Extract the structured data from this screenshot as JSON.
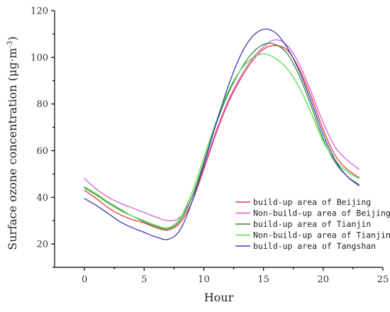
{
  "chart_data": {
    "type": "line",
    "title": "",
    "xlabel": "Hour",
    "ylabel": "Surface ozone concentration (μg·m⁻³)",
    "ylabel_main": "Surface ozone concentration (μg·m",
    "ylabel_sup": "-3",
    "ylabel_close": ")",
    "xlim": [
      -2.5,
      25
    ],
    "ylim": [
      10,
      120
    ],
    "x_ticks": [
      0,
      5,
      10,
      15,
      20,
      25
    ],
    "y_ticks": [
      20,
      40,
      60,
      80,
      100,
      120
    ],
    "x_tick_labels": [
      "0",
      "5",
      "10",
      "15",
      "20",
      "25"
    ],
    "y_tick_labels": [
      "20",
      "40",
      "60",
      "80",
      "100",
      "120"
    ],
    "grid": false,
    "legend_position": "lower-right",
    "x": [
      0,
      1,
      2,
      3,
      4,
      5,
      6,
      7,
      8,
      9,
      10,
      11,
      12,
      13,
      14,
      15,
      16,
      17,
      18,
      19,
      20,
      21,
      22,
      23
    ],
    "series": [
      {
        "name": "build-up area of Beijing",
        "color": "#e8383b",
        "values": [
          43,
          39.5,
          35.5,
          32.5,
          30.5,
          29,
          27,
          26,
          29,
          38,
          52,
          67,
          80,
          90,
          98,
          103.5,
          105,
          103,
          95,
          83,
          69,
          58,
          52,
          48.5
        ]
      },
      {
        "name": "Non-build-up area of Beijing",
        "color": "#d65ed6",
        "values": [
          48,
          43.5,
          40,
          37.5,
          35.5,
          33.5,
          31.5,
          30,
          31.5,
          40,
          53,
          68,
          81,
          91,
          99,
          104.5,
          107.5,
          105,
          97,
          85,
          72,
          61.5,
          56,
          52
        ]
      },
      {
        "name": "build-up area of Tianjin",
        "color": "#2e8b2e",
        "values": [
          44,
          41,
          37.5,
          34.5,
          32,
          29.5,
          27.5,
          26.5,
          30,
          40,
          55,
          71,
          84,
          94,
          101.5,
          105.5,
          105.5,
          101.5,
          92,
          79,
          65,
          55,
          49,
          45.5
        ]
      },
      {
        "name": "Non-build-up area of Tianjin",
        "color": "#4de04d",
        "values": [
          44.5,
          41.5,
          38,
          35,
          32,
          30,
          28,
          27,
          31,
          42,
          57,
          72,
          85,
          94,
          99.5,
          101.5,
          99.5,
          95,
          87,
          76,
          64,
          56,
          51,
          48
        ]
      },
      {
        "name": "build-up area of Tangshan",
        "color": "#3a3ab5",
        "values": [
          39.5,
          36.5,
          33,
          29.5,
          27,
          25,
          23,
          22,
          26,
          38,
          54,
          71,
          87,
          100,
          108.5,
          112,
          110.5,
          104,
          94,
          81,
          67,
          56,
          49,
          45
        ]
      }
    ]
  }
}
